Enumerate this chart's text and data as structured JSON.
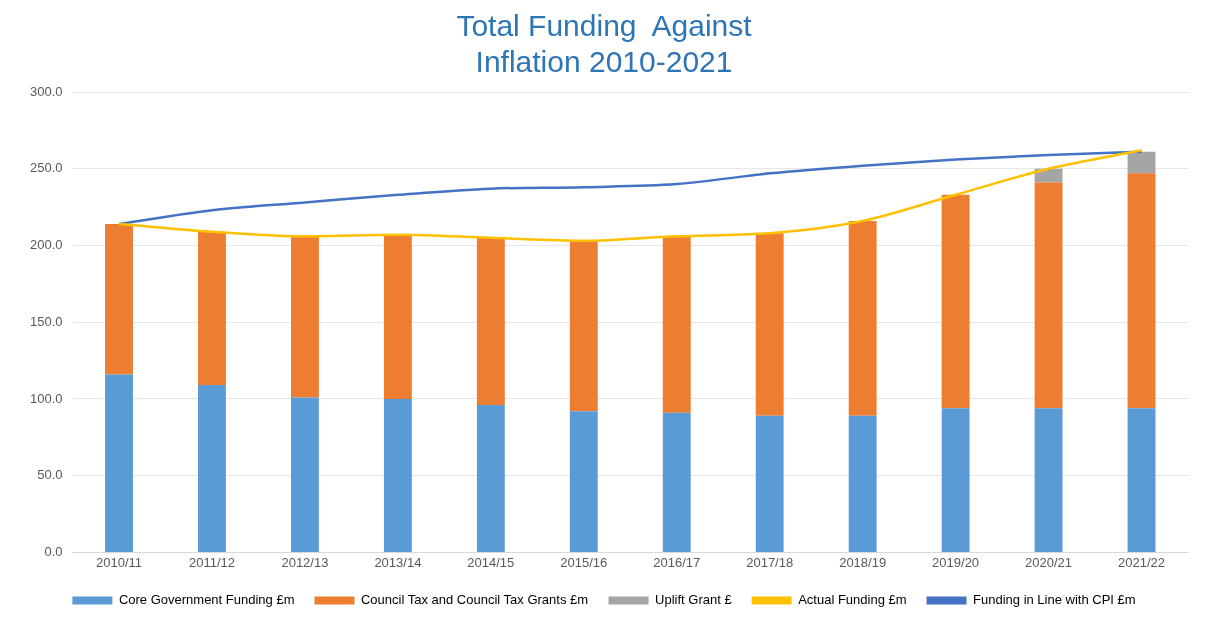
{
  "chart_data": {
    "type": "bar",
    "title": "Total Funding  Against\nInflation 2010-2021",
    "stacked": true,
    "categories": [
      "2010/11",
      "2011/12",
      "2012/13",
      "2013/14",
      "2014/15",
      "2015/16",
      "2016/17",
      "2017/18",
      "2018/19",
      "2019/20",
      "2020/21",
      "2021/22"
    ],
    "series": [
      {
        "name": "Core Government Funding £m",
        "color": "#5b9bd5",
        "values": [
          116,
          109,
          101,
          100,
          96,
          92,
          91,
          89,
          89,
          94,
          94,
          94
        ]
      },
      {
        "name": "Council Tax and Council Tax Grants £m",
        "color": "#ed7d31",
        "values": [
          98,
          100,
          105,
          107,
          109,
          111,
          115,
          119,
          127,
          139,
          147,
          153
        ]
      },
      {
        "name": "Uplift Grant £",
        "color": "#a5a5a5",
        "values": [
          null,
          null,
          null,
          null,
          null,
          null,
          null,
          null,
          null,
          null,
          9,
          14
        ]
      },
      {
        "name": "Actual Funding £m",
        "type": "line",
        "color": "#ffc000",
        "values": [
          214,
          209,
          206,
          207,
          205,
          203,
          206,
          208,
          216,
          233,
          250,
          262
        ]
      },
      {
        "name": "Funding in Line with CPI £m",
        "type": "line",
        "color": "#4472c4",
        "values": [
          214,
          223,
          228,
          233,
          237,
          238,
          240,
          247,
          252,
          256,
          259,
          261
        ]
      }
    ],
    "ylim": [
      0,
      300
    ],
    "yticks": [
      {
        "value": 0,
        "label": "0.0"
      },
      {
        "value": 50,
        "label": "50.0"
      },
      {
        "value": 100,
        "label": "100.0"
      },
      {
        "value": 150,
        "label": "150.0"
      },
      {
        "value": 200,
        "label": "200.0"
      },
      {
        "value": 250,
        "label": "250.0"
      },
      {
        "value": 300,
        "label": "300.0"
      }
    ],
    "grid": "y",
    "legend": "bottom",
    "marker": "none"
  }
}
